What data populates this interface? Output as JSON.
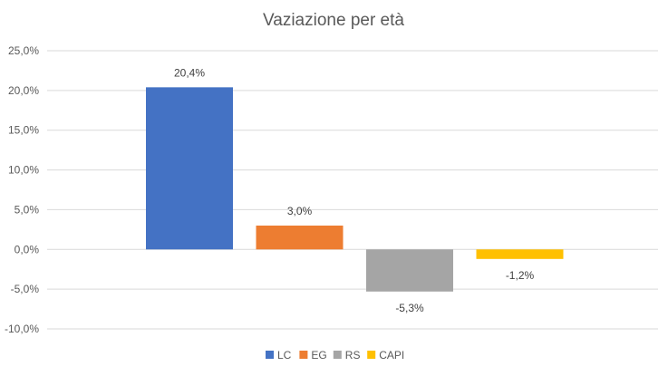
{
  "chart_data": {
    "type": "bar",
    "title": "Vaziazione per età",
    "categories": [
      "LC",
      "EG",
      "RS",
      "CAPI"
    ],
    "values": [
      20.4,
      3.0,
      -5.3,
      -1.2
    ],
    "value_labels": [
      "20,4%",
      "3,0%",
      "-5,3%",
      "-1,2%"
    ],
    "colors": [
      "#4472c4",
      "#ed7d31",
      "#a5a5a5",
      "#ffc000"
    ],
    "ylim": [
      -10,
      25
    ],
    "yticks": [
      25,
      20,
      15,
      10,
      5,
      0,
      -5,
      -10
    ],
    "ytick_labels": [
      "25,0%",
      "20,0%",
      "15,0%",
      "10,0%",
      "5,0%",
      "0,0%",
      "-5,0%",
      "-10,0%"
    ],
    "grid": true,
    "legend": {
      "position": "bottom",
      "entries": [
        "LC",
        "EG",
        "RS",
        "CAPI"
      ]
    }
  }
}
